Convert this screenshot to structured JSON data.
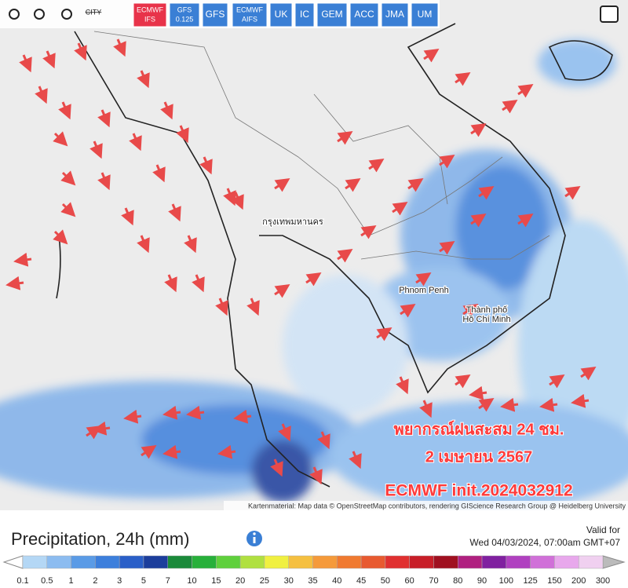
{
  "toolbar": {
    "city": "CITY",
    "models": [
      {
        "lines": [
          "ECMWF",
          "IFS"
        ],
        "active": true
      },
      {
        "lines": [
          "GFS",
          "0.125"
        ],
        "active": false
      },
      {
        "lines": [
          "GFS"
        ],
        "active": false
      },
      {
        "lines": [
          "ECMWF",
          "AIFS"
        ],
        "active": false
      },
      {
        "lines": [
          "UK"
        ],
        "active": false
      },
      {
        "lines": [
          "IC"
        ],
        "active": false
      },
      {
        "lines": [
          "GEM"
        ],
        "active": false
      },
      {
        "lines": [
          "ACC"
        ],
        "active": false
      },
      {
        "lines": [
          "JMA"
        ],
        "active": false
      },
      {
        "lines": [
          "UM"
        ],
        "active": false
      }
    ]
  },
  "map": {
    "places": [
      "กรุงเทพมหานคร",
      "Phnom Penh",
      "Thành phố",
      "Hồ Chí Minh"
    ],
    "overlay": [
      "พยากรณ์ฝนสะสม 24 ชม.",
      "2 เมษายน 2567",
      "ECMWF init.2024032912"
    ],
    "attribution": "Kartenmaterial: Map data © OpenStreetMap contributors, rendering GIScience Research Group @ Heidelberg University"
  },
  "legend": {
    "title": "Precipitation, 24h (mm)",
    "valid_label": "Valid for",
    "valid_time": "Wed 04/03/2024, 07:00am GMT+07",
    "labels": [
      0.1,
      0.5,
      1,
      2,
      3,
      5,
      7,
      10,
      15,
      20,
      25,
      30,
      35,
      40,
      45,
      50,
      60,
      70,
      80,
      90,
      100,
      125,
      150,
      200,
      300
    ],
    "colors": [
      "#b4d7f5",
      "#8cbcf0",
      "#5a9be6",
      "#3c7fdc",
      "#2a5fc8",
      "#1c3e9c",
      "#1a8a3a",
      "#27b03a",
      "#5fd03c",
      "#b0e040",
      "#f0f040",
      "#f5c040",
      "#f59a3a",
      "#f07a30",
      "#e85a30",
      "#e03030",
      "#c81e28",
      "#a01020",
      "#b02080",
      "#8020a0",
      "#b040c0",
      "#d070d8",
      "#e8a8ec",
      "#f0d0f0"
    ]
  }
}
